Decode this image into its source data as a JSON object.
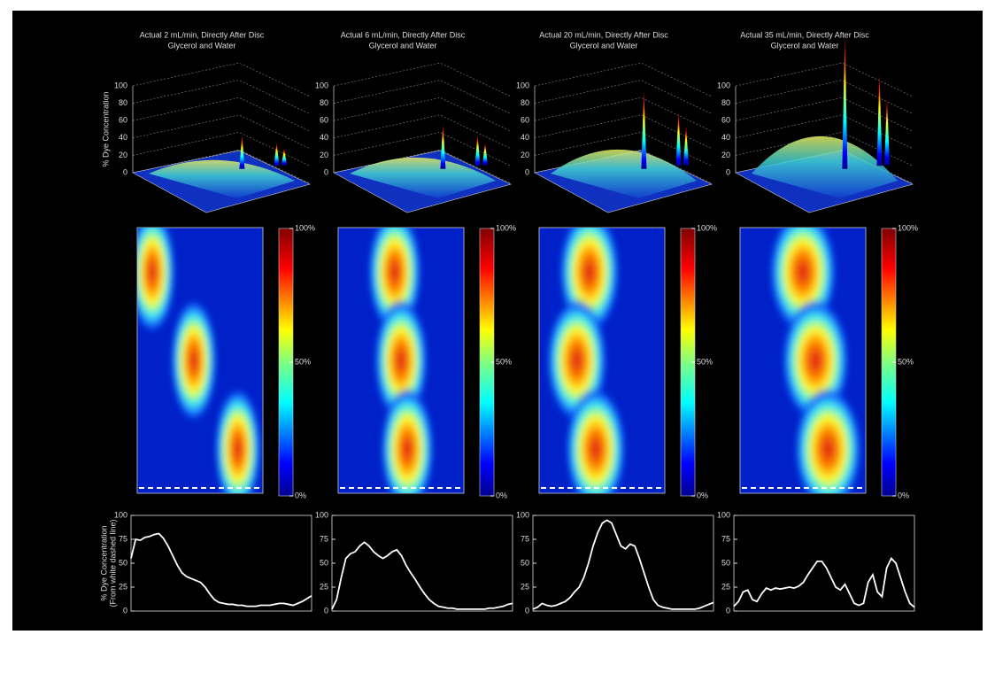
{
  "chart_data": [
    {
      "type": "line",
      "title": "Actual 2 mL/min, Directly After Disc",
      "subtitle": "Glycerol and Water",
      "surface_zlabel": "% Dye Concentration",
      "ylabel": [
        "% Dye Concentration",
        "(From white dashed line)"
      ],
      "color": "#ffffff",
      "values": [
        55,
        75,
        74,
        77,
        78,
        80,
        81,
        76,
        68,
        58,
        48,
        40,
        36,
        34,
        32,
        30,
        25,
        18,
        12,
        9,
        8,
        7,
        7,
        6,
        6,
        5,
        5,
        5,
        6,
        6,
        6,
        7,
        8,
        8,
        7,
        6,
        8,
        10,
        13,
        16
      ],
      "ylim": [
        0,
        100
      ],
      "yticks": [
        0,
        25,
        50,
        75,
        100
      ],
      "zlim": [
        0,
        100
      ],
      "zticks": [
        0,
        20,
        40,
        60,
        80,
        100
      ],
      "colorbar_lim": [
        0,
        100
      ],
      "colorbar_ticks": [
        {
          "value": 0,
          "label": "0%"
        },
        {
          "value": 50,
          "label": "50%"
        },
        {
          "value": 100,
          "label": "100%"
        }
      ]
    },
    {
      "type": "line",
      "title": "Actual 6 mL/min, Directly After Disc",
      "subtitle": "Glycerol and Water",
      "color": "#ffffff",
      "values": [
        2,
        12,
        35,
        55,
        60,
        62,
        68,
        72,
        68,
        62,
        58,
        55,
        58,
        62,
        64,
        58,
        48,
        40,
        33,
        25,
        18,
        12,
        8,
        5,
        4,
        3,
        3,
        2,
        2,
        2,
        2,
        2,
        2,
        2,
        3,
        3,
        4,
        5,
        7,
        8
      ],
      "ylim": [
        0,
        100
      ],
      "yticks": [
        0,
        25,
        50,
        75,
        100
      ],
      "zlim": [
        0,
        100
      ],
      "zticks": [
        0,
        20,
        40,
        60,
        80,
        100
      ],
      "colorbar_lim": [
        0,
        100
      ],
      "colorbar_ticks": [
        {
          "value": 0,
          "label": "0%"
        },
        {
          "value": 50,
          "label": "50%"
        },
        {
          "value": 100,
          "label": "100%"
        }
      ]
    },
    {
      "type": "line",
      "title": "Actual 20 mL/min, Directly After Disc",
      "subtitle": "Glycerol and Water",
      "color": "#ffffff",
      "values": [
        2,
        4,
        8,
        6,
        5,
        6,
        8,
        10,
        14,
        20,
        25,
        35,
        50,
        68,
        82,
        92,
        95,
        92,
        80,
        68,
        65,
        70,
        68,
        55,
        40,
        25,
        12,
        6,
        4,
        3,
        2,
        2,
        2,
        2,
        2,
        2,
        3,
        5,
        7,
        9
      ],
      "ylim": [
        0,
        100
      ],
      "yticks": [
        0,
        25,
        50,
        75,
        100
      ],
      "zlim": [
        0,
        100
      ],
      "zticks": [
        0,
        20,
        40,
        60,
        80,
        100
      ],
      "colorbar_lim": [
        0,
        100
      ],
      "colorbar_ticks": [
        {
          "value": 0,
          "label": "0%"
        },
        {
          "value": 50,
          "label": "50%"
        },
        {
          "value": 100,
          "label": "100%"
        }
      ]
    },
    {
      "type": "line",
      "title": "Actual 35 mL/min, Directly After Disc",
      "subtitle": "Glycerol and Water",
      "color": "#ffffff",
      "values": [
        5,
        10,
        20,
        22,
        12,
        10,
        18,
        24,
        22,
        24,
        23,
        24,
        25,
        24,
        26,
        30,
        38,
        45,
        52,
        52,
        45,
        35,
        25,
        22,
        28,
        18,
        8,
        6,
        8,
        30,
        38,
        20,
        15,
        45,
        55,
        50,
        35,
        20,
        8,
        4
      ],
      "ylim": [
        0,
        100
      ],
      "yticks": [
        0,
        25,
        50,
        75,
        100
      ],
      "zlim": [
        0,
        100
      ],
      "zticks": [
        0,
        20,
        40,
        60,
        80,
        100
      ],
      "colorbar_lim": [
        0,
        100
      ],
      "colorbar_ticks": [
        {
          "value": 0,
          "label": "0%"
        },
        {
          "value": 50,
          "label": "50%"
        },
        {
          "value": 100,
          "label": "100%"
        }
      ]
    }
  ]
}
